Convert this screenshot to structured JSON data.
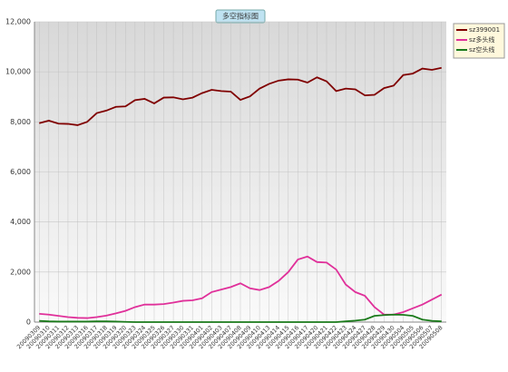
{
  "chart_data": {
    "type": "line",
    "title": "多空指标图",
    "categories": [
      "20090309",
      "20090310",
      "20090311",
      "20090312",
      "20090313",
      "20090316",
      "20090317",
      "20090318",
      "20090319",
      "20090320",
      "20090323",
      "20090324",
      "20090325",
      "20090326",
      "20090327",
      "20090330",
      "20090331",
      "20090401",
      "20090402",
      "20090403",
      "20090407",
      "20090408",
      "20090409",
      "20090410",
      "20090413",
      "20090414",
      "20090415",
      "20090416",
      "20090417",
      "20090420",
      "20090421",
      "20090422",
      "20090423",
      "20090424",
      "20090427",
      "20090428",
      "20090429",
      "20090430",
      "20090504",
      "20090505",
      "20090506",
      "20090507",
      "20090508"
    ],
    "series": [
      {
        "name": "sz399001",
        "color": "#800000",
        "values": [
          7950,
          8050,
          7930,
          7920,
          7870,
          8000,
          8350,
          8450,
          8600,
          8620,
          8870,
          8920,
          8740,
          8970,
          8980,
          8900,
          8970,
          9150,
          9280,
          9230,
          9210,
          8880,
          9020,
          9330,
          9520,
          9650,
          9700,
          9690,
          9570,
          9780,
          9620,
          9230,
          9330,
          9300,
          9060,
          9080,
          9350,
          9450,
          9870,
          9930,
          10130,
          10080,
          10160
        ]
      },
      {
        "name": "sz多头线",
        "color": "#e0309a",
        "values": [
          330,
          300,
          250,
          200,
          170,
          160,
          200,
          260,
          350,
          450,
          600,
          700,
          700,
          720,
          780,
          850,
          870,
          950,
          1200,
          1300,
          1400,
          1550,
          1350,
          1280,
          1400,
          1650,
          2000,
          2500,
          2620,
          2400,
          2380,
          2100,
          1500,
          1200,
          1050,
          600,
          300,
          300,
          400,
          550,
          700,
          900,
          1100
        ]
      },
      {
        "name": "sz空头线",
        "color": "#1a7a1a",
        "values": [
          50,
          30,
          20,
          20,
          20,
          20,
          30,
          30,
          20,
          10,
          0,
          0,
          0,
          0,
          0,
          0,
          0,
          0,
          0,
          0,
          0,
          0,
          0,
          0,
          0,
          0,
          0,
          0,
          0,
          0,
          0,
          0,
          30,
          60,
          100,
          250,
          280,
          300,
          290,
          250,
          100,
          50,
          30
        ]
      }
    ],
    "ylim": [
      0,
      12000
    ],
    "yticks": [
      {
        "value": 0,
        "label": "0"
      },
      {
        "value": 2000,
        "label": "2,000"
      },
      {
        "value": 4000,
        "label": "4,000"
      },
      {
        "value": 6000,
        "label": "6,000"
      },
      {
        "value": 8000,
        "label": "8,000"
      },
      {
        "value": 10000,
        "label": "10,000"
      },
      {
        "value": 12000,
        "label": "12,000"
      }
    ],
    "grid": true,
    "legend": "top-right"
  }
}
